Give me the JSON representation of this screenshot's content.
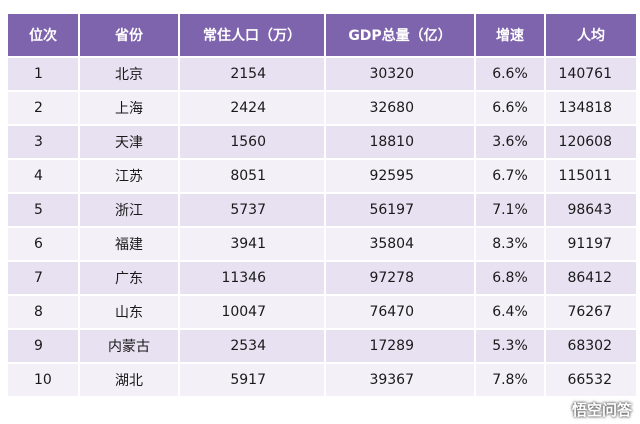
{
  "table": {
    "headers": [
      "位次",
      "省份",
      "常住人口（万）",
      "GDP总量（亿）",
      "增速",
      "人均"
    ],
    "rows": [
      [
        "1",
        "北京",
        "2154",
        "30320",
        "6.6%",
        "140761"
      ],
      [
        "2",
        "上海",
        "2424",
        "32680",
        "6.6%",
        "134818"
      ],
      [
        "3",
        "天津",
        "1560",
        "18810",
        "3.6%",
        "120608"
      ],
      [
        "4",
        "江苏",
        "8051",
        "92595",
        "6.7%",
        "115011"
      ],
      [
        "5",
        "浙江",
        "5737",
        "56197",
        "7.1%",
        "98643"
      ],
      [
        "6",
        "福建",
        "3941",
        "35804",
        "8.3%",
        "91197"
      ],
      [
        "7",
        "广东",
        "11346",
        "97278",
        "6.8%",
        "86412"
      ],
      [
        "8",
        "山东",
        "10047",
        "76470",
        "6.4%",
        "76267"
      ],
      [
        "9",
        "内蒙古",
        "2534",
        "17289",
        "5.3%",
        "68302"
      ],
      [
        "10",
        "湖北",
        "5917",
        "39367",
        "7.8%",
        "66532"
      ]
    ]
  },
  "watermark": {
    "text": "悟空问答",
    "icon": "wukong-logo-icon"
  },
  "colors": {
    "header_bg": "#7e63ad",
    "row_odd_bg": "#e7e1f1",
    "row_even_bg": "#f3f0f8"
  }
}
